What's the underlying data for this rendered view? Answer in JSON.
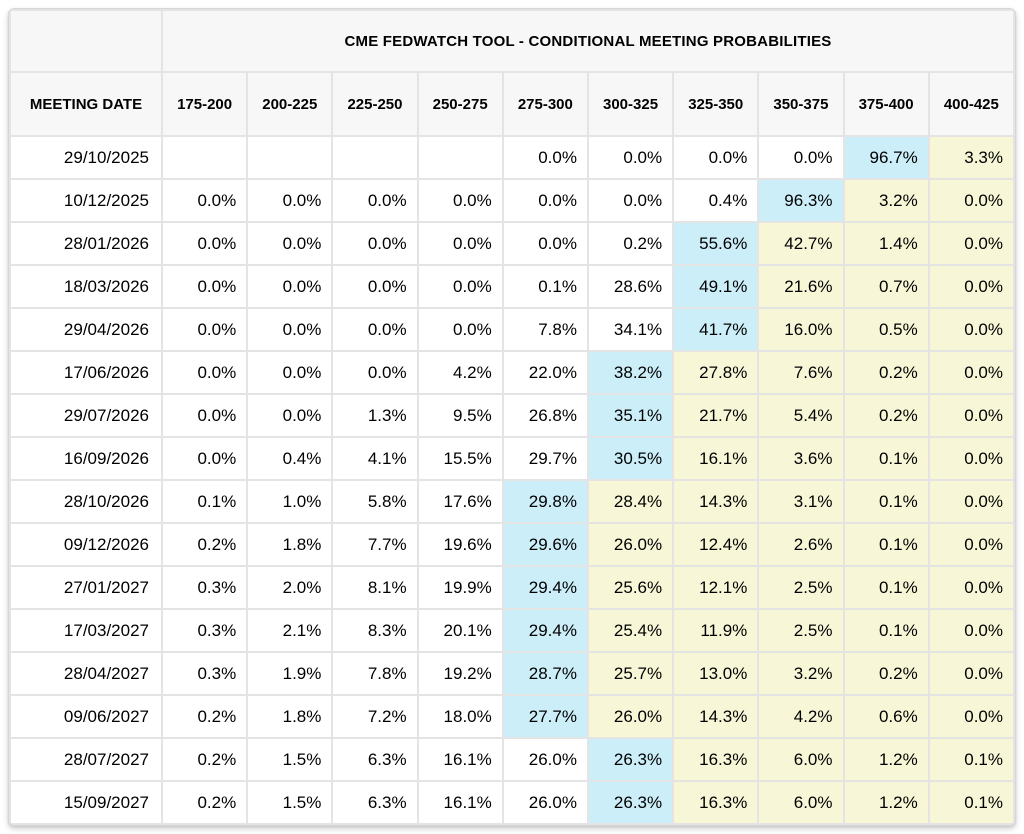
{
  "chart_data": {
    "type": "table",
    "title": "CME FEDWATCH TOOL - CONDITIONAL MEETING PROBABILITIES",
    "row_header_label": "MEETING DATE",
    "columns": [
      "175-200",
      "200-225",
      "225-250",
      "250-275",
      "275-300",
      "300-325",
      "325-350",
      "350-375",
      "375-400",
      "400-425"
    ],
    "rows": [
      {
        "date": "29/10/2025",
        "values": [
          "",
          "",
          "",
          "",
          "0.0%",
          "0.0%",
          "0.0%",
          "0.0%",
          "96.7%",
          "3.3%"
        ],
        "mode_index": 8
      },
      {
        "date": "10/12/2025",
        "values": [
          "0.0%",
          "0.0%",
          "0.0%",
          "0.0%",
          "0.0%",
          "0.0%",
          "0.4%",
          "96.3%",
          "3.2%",
          "0.0%"
        ],
        "mode_index": 7
      },
      {
        "date": "28/01/2026",
        "values": [
          "0.0%",
          "0.0%",
          "0.0%",
          "0.0%",
          "0.0%",
          "0.2%",
          "55.6%",
          "42.7%",
          "1.4%",
          "0.0%"
        ],
        "mode_index": 6
      },
      {
        "date": "18/03/2026",
        "values": [
          "0.0%",
          "0.0%",
          "0.0%",
          "0.0%",
          "0.1%",
          "28.6%",
          "49.1%",
          "21.6%",
          "0.7%",
          "0.0%"
        ],
        "mode_index": 6
      },
      {
        "date": "29/04/2026",
        "values": [
          "0.0%",
          "0.0%",
          "0.0%",
          "0.0%",
          "7.8%",
          "34.1%",
          "41.7%",
          "16.0%",
          "0.5%",
          "0.0%"
        ],
        "mode_index": 6
      },
      {
        "date": "17/06/2026",
        "values": [
          "0.0%",
          "0.0%",
          "0.0%",
          "4.2%",
          "22.0%",
          "38.2%",
          "27.8%",
          "7.6%",
          "0.2%",
          "0.0%"
        ],
        "mode_index": 5
      },
      {
        "date": "29/07/2026",
        "values": [
          "0.0%",
          "0.0%",
          "1.3%",
          "9.5%",
          "26.8%",
          "35.1%",
          "21.7%",
          "5.4%",
          "0.2%",
          "0.0%"
        ],
        "mode_index": 5
      },
      {
        "date": "16/09/2026",
        "values": [
          "0.0%",
          "0.4%",
          "4.1%",
          "15.5%",
          "29.7%",
          "30.5%",
          "16.1%",
          "3.6%",
          "0.1%",
          "0.0%"
        ],
        "mode_index": 5
      },
      {
        "date": "28/10/2026",
        "values": [
          "0.1%",
          "1.0%",
          "5.8%",
          "17.6%",
          "29.8%",
          "28.4%",
          "14.3%",
          "3.1%",
          "0.1%",
          "0.0%"
        ],
        "mode_index": 4
      },
      {
        "date": "09/12/2026",
        "values": [
          "0.2%",
          "1.8%",
          "7.7%",
          "19.6%",
          "29.6%",
          "26.0%",
          "12.4%",
          "2.6%",
          "0.1%",
          "0.0%"
        ],
        "mode_index": 4
      },
      {
        "date": "27/01/2027",
        "values": [
          "0.3%",
          "2.0%",
          "8.1%",
          "19.9%",
          "29.4%",
          "25.6%",
          "12.1%",
          "2.5%",
          "0.1%",
          "0.0%"
        ],
        "mode_index": 4
      },
      {
        "date": "17/03/2027",
        "values": [
          "0.3%",
          "2.1%",
          "8.3%",
          "20.1%",
          "29.4%",
          "25.4%",
          "11.9%",
          "2.5%",
          "0.1%",
          "0.0%"
        ],
        "mode_index": 4
      },
      {
        "date": "28/04/2027",
        "values": [
          "0.3%",
          "1.9%",
          "7.8%",
          "19.2%",
          "28.7%",
          "25.7%",
          "13.0%",
          "3.2%",
          "0.2%",
          "0.0%"
        ],
        "mode_index": 4
      },
      {
        "date": "09/06/2027",
        "values": [
          "0.2%",
          "1.8%",
          "7.2%",
          "18.0%",
          "27.7%",
          "26.0%",
          "14.3%",
          "4.2%",
          "0.6%",
          "0.0%"
        ],
        "mode_index": 4
      },
      {
        "date": "28/07/2027",
        "values": [
          "0.2%",
          "1.5%",
          "6.3%",
          "16.1%",
          "26.0%",
          "26.3%",
          "16.3%",
          "6.0%",
          "1.2%",
          "0.1%"
        ],
        "mode_index": 5
      },
      {
        "date": "15/09/2027",
        "values": [
          "0.2%",
          "1.5%",
          "6.3%",
          "16.1%",
          "26.0%",
          "26.3%",
          "16.3%",
          "6.0%",
          "1.2%",
          "0.1%"
        ],
        "mode_index": 5
      }
    ],
    "highlight_colors": {
      "mode_cell": "#cbeef8",
      "right_of_mode_cell": "#f7f7d8"
    },
    "layout": {
      "grid": true,
      "header_background": "#f7f7f7",
      "cell_background": "#ffffff",
      "border_color": "#e4e4e4"
    }
  }
}
